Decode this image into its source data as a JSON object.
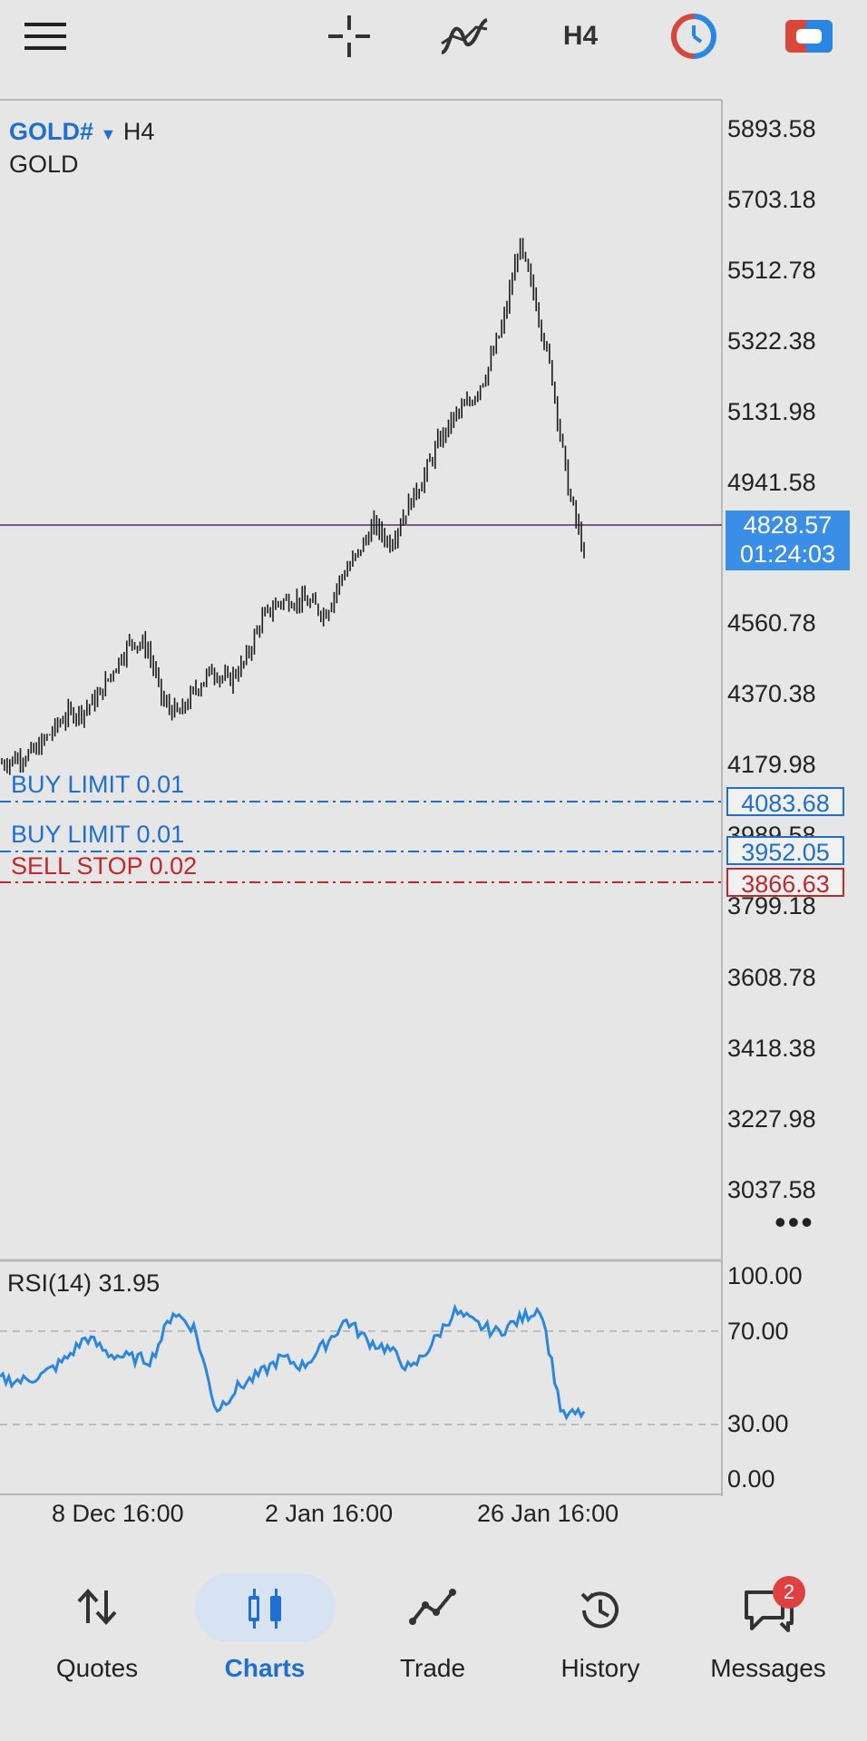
{
  "toolbar": {
    "timeframe": "H4",
    "icons": [
      "menu-icon",
      "crosshair-icon",
      "indicators-icon",
      "timeframe-button",
      "timer-icon",
      "one-click-trading-icon"
    ]
  },
  "chart": {
    "symbol": "GOLD#",
    "timeframe": "H4",
    "description": "GOLD",
    "price_ticks": [
      "5893.58",
      "5703.18",
      "5512.78",
      "5322.38",
      "5131.98",
      "4941.58",
      "4560.78",
      "4370.38",
      "4179.98",
      "3989.58",
      "3799.18",
      "3608.78",
      "3418.38",
      "3227.98",
      "3037.58"
    ],
    "current_price": "4828.57",
    "candle_timer": "01:24:03",
    "more": "•••",
    "orders": [
      {
        "label": "BUY LIMIT 0.01",
        "price": "4083.68",
        "color": "#1e6fd1"
      },
      {
        "label": "BUY LIMIT 0.01",
        "price": "3952.05",
        "color": "#1e6fd1"
      },
      {
        "label": "SELL STOP 0.02",
        "price": "3866.63",
        "color": "#c0282d"
      }
    ],
    "x_labels": [
      "8 Dec 16:00",
      "2 Jan 16:00",
      "26 Jan 16:00"
    ]
  },
  "rsi": {
    "title": "RSI(14) 31.95",
    "ticks": [
      "100.00",
      "70.00",
      "30.00",
      "0.00"
    ],
    "color": "#2a86e0"
  },
  "nav": {
    "items": [
      {
        "label": "Quotes",
        "icon": "quotes-icon"
      },
      {
        "label": "Charts",
        "icon": "charts-icon"
      },
      {
        "label": "Trade",
        "icon": "trade-icon"
      },
      {
        "label": "History",
        "icon": "history-icon"
      },
      {
        "label": "Messages",
        "icon": "messages-icon"
      }
    ],
    "active": "Charts",
    "messages_badge": "2"
  },
  "chart_data": {
    "type": "line",
    "series": [
      {
        "name": "GOLD#",
        "values": [
          4200,
          4215,
          4230,
          4280,
          4330,
          4340,
          4380,
          4460,
          4530,
          4510,
          4360,
          4330,
          4400,
          4450,
          4420,
          4470,
          4580,
          4630,
          4640,
          4630,
          4600,
          4700,
          4760,
          4840,
          4790,
          4880,
          4960,
          5060,
          5130,
          5170,
          5250,
          5380,
          5590,
          5440,
          5240,
          4940,
          4760
        ]
      },
      {
        "name": "RSI(14)",
        "values": [
          48,
          47,
          50,
          57,
          68,
          60,
          58,
          57,
          80,
          72,
          33,
          44,
          50,
          58,
          54,
          64,
          76,
          66,
          62,
          52,
          65,
          80,
          74,
          70,
          76,
          82,
          30,
          31.95
        ]
      }
    ],
    "ylim": [
      2990,
      6000
    ]
  }
}
